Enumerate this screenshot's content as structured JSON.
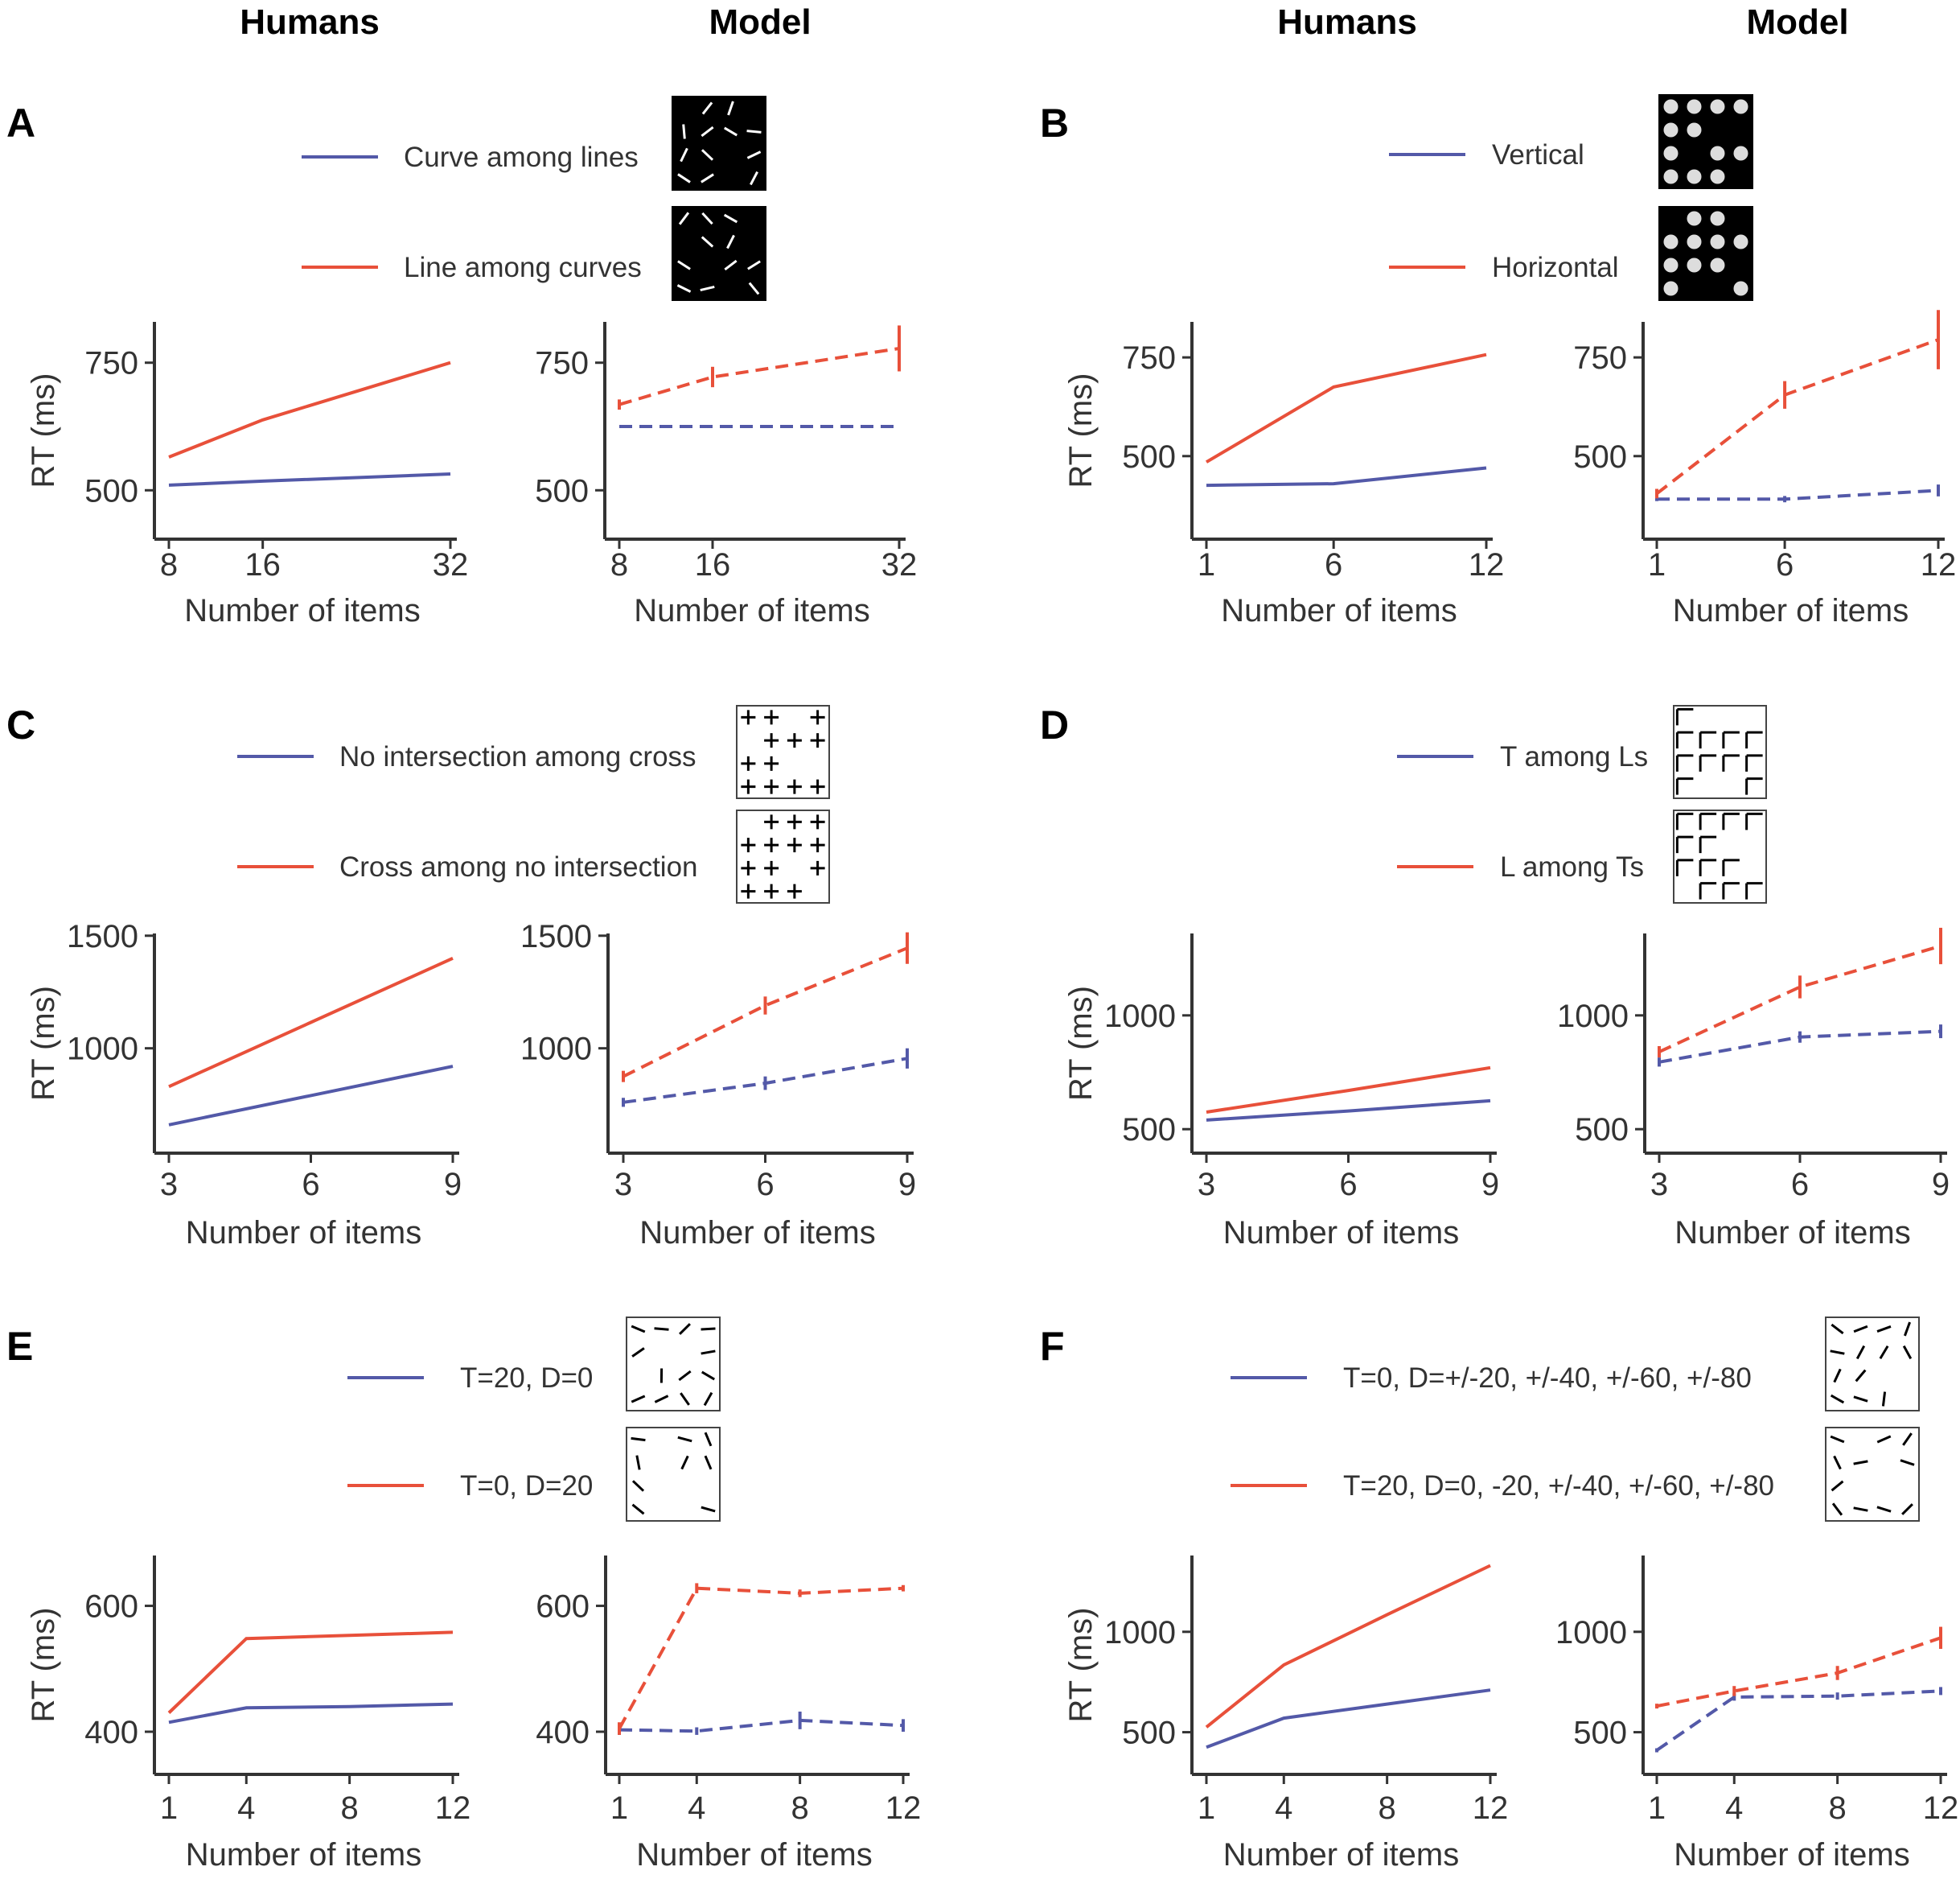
{
  "column_titles": [
    "Humans",
    "Model",
    "Humans",
    "Model"
  ],
  "colors": {
    "blue": "#5359a8",
    "red": "#e8503a",
    "axis": "#333333"
  },
  "panels": [
    {
      "letter": "A",
      "legend": [
        "Curve among lines",
        "Line among curves"
      ],
      "example_style": "dark",
      "example_icons": [
        "curve-among-lines-icon",
        "line-among-curves-icon"
      ]
    },
    {
      "letter": "B",
      "legend": [
        "Vertical",
        "Horizontal"
      ],
      "example_style": "dark",
      "example_icons": [
        "vertical-shading-icon",
        "horizontal-shading-icon"
      ]
    },
    {
      "letter": "C",
      "legend": [
        "No intersection among cross",
        "Cross among no intersection"
      ],
      "example_style": "light",
      "example_icons": [
        "no-intersection-among-cross-icon",
        "cross-among-no-intersection-icon"
      ]
    },
    {
      "letter": "D",
      "legend": [
        "T among Ls",
        "L among Ts"
      ],
      "example_style": "light",
      "example_icons": [
        "t-among-ls-icon",
        "l-among-ts-icon"
      ]
    },
    {
      "letter": "E",
      "legend": [
        "T=20, D=0",
        "T=0, D=20"
      ],
      "example_style": "light",
      "example_icons": [
        "oriented-lines-icon",
        "oriented-lines-icon"
      ]
    },
    {
      "letter": "F",
      "legend": [
        "T=0, D=+/-20, +/-40, +/-60, +/-80",
        "T=20, D=0, -20, +/-40, +/-60, +/-80"
      ],
      "example_style": "light",
      "example_icons": [
        "oriented-lines-icon",
        "oriented-lines-icon"
      ]
    }
  ],
  "chart_data": [
    {
      "panel": "A",
      "subject": "Humans",
      "type": "line",
      "style": "solid",
      "xlabel": "Number of items",
      "ylabel": "RT (ms)",
      "x": [
        8,
        16,
        32
      ],
      "xticks": [
        8,
        16,
        32
      ],
      "yticks": [
        500,
        750
      ],
      "ylim": [
        420,
        830
      ],
      "series": [
        {
          "name": "Curve among lines",
          "color": "blue",
          "values": [
            510,
            518,
            532
          ]
        },
        {
          "name": "Line among curves",
          "color": "red",
          "values": [
            565,
            638,
            750
          ]
        }
      ]
    },
    {
      "panel": "A",
      "subject": "Model",
      "type": "line",
      "style": "dashed",
      "xlabel": "Number of items",
      "ylabel": "",
      "x": [
        8,
        16,
        32
      ],
      "xticks": [
        8,
        16,
        32
      ],
      "yticks": [
        500,
        750
      ],
      "ylim": [
        420,
        830
      ],
      "series": [
        {
          "name": "Curve among lines",
          "color": "blue",
          "values": [
            625,
            625,
            625
          ],
          "err": [
            0,
            0,
            0
          ]
        },
        {
          "name": "Line among curves",
          "color": "red",
          "values": [
            668,
            722,
            778
          ],
          "err": [
            10,
            20,
            45
          ]
        }
      ]
    },
    {
      "panel": "B",
      "subject": "Humans",
      "type": "line",
      "style": "solid",
      "xlabel": "Number of items",
      "ylabel": "RT (ms)",
      "x": [
        1,
        6,
        12
      ],
      "xticks": [
        1,
        6,
        12
      ],
      "yticks": [
        500,
        750
      ],
      "ylim": [
        310,
        840
      ],
      "series": [
        {
          "name": "Vertical",
          "color": "blue",
          "values": [
            426,
            430,
            470
          ]
        },
        {
          "name": "Horizontal",
          "color": "red",
          "values": [
            485,
            675,
            757
          ]
        }
      ]
    },
    {
      "panel": "B",
      "subject": "Model",
      "type": "line",
      "style": "dashed",
      "xlabel": "Number of items",
      "ylabel": "",
      "x": [
        1,
        6,
        12
      ],
      "xticks": [
        1,
        6,
        12
      ],
      "yticks": [
        500,
        750
      ],
      "ylim": [
        310,
        840
      ],
      "series": [
        {
          "name": "Vertical",
          "color": "blue",
          "values": [
            391,
            391,
            413
          ],
          "err": [
            5,
            8,
            15
          ]
        },
        {
          "name": "Horizontal",
          "color": "red",
          "values": [
            405,
            655,
            795
          ],
          "err": [
            12,
            35,
            75
          ]
        }
      ]
    },
    {
      "panel": "C",
      "subject": "Humans",
      "type": "line",
      "style": "solid",
      "xlabel": "Number of items",
      "ylabel": "RT (ms)",
      "x": [
        3,
        6,
        9
      ],
      "xticks": [
        3,
        6,
        9
      ],
      "yticks": [
        1000,
        1500
      ],
      "ylim": [
        570,
        1510
      ],
      "series": [
        {
          "name": "No intersection among cross",
          "color": "blue",
          "values": [
            660,
            790,
            920
          ]
        },
        {
          "name": "Cross among no intersection",
          "color": "red",
          "values": [
            830,
            1115,
            1400
          ]
        }
      ]
    },
    {
      "panel": "C",
      "subject": "Model",
      "type": "line",
      "style": "dashed",
      "xlabel": "Number of items",
      "ylabel": "",
      "x": [
        3,
        6,
        9
      ],
      "xticks": [
        3,
        6,
        9
      ],
      "yticks": [
        1000,
        1500
      ],
      "ylim": [
        570,
        1510
      ],
      "series": [
        {
          "name": "No intersection among cross",
          "color": "blue",
          "values": [
            760,
            845,
            955
          ],
          "err": [
            20,
            30,
            45
          ]
        },
        {
          "name": "Cross among no intersection",
          "color": "red",
          "values": [
            875,
            1190,
            1445
          ],
          "err": [
            25,
            40,
            70
          ]
        }
      ]
    },
    {
      "panel": "D",
      "subject": "Humans",
      "type": "line",
      "style": "solid",
      "xlabel": "Number of items",
      "ylabel": "RT (ms)",
      "x": [
        3,
        6,
        9
      ],
      "xticks": [
        3,
        6,
        9
      ],
      "yticks": [
        500,
        1000
      ],
      "ylim": [
        430,
        1360
      ],
      "series": [
        {
          "name": "T among Ls",
          "color": "blue",
          "values": [
            540,
            580,
            625
          ]
        },
        {
          "name": "L among Ts",
          "color": "red",
          "values": [
            575,
            670,
            770
          ]
        }
      ]
    },
    {
      "panel": "D",
      "subject": "Model",
      "type": "line",
      "style": "dashed",
      "xlabel": "Number of items",
      "ylabel": "",
      "x": [
        3,
        6,
        9
      ],
      "xticks": [
        3,
        6,
        9
      ],
      "yticks": [
        500,
        1000
      ],
      "ylim": [
        430,
        1360
      ],
      "series": [
        {
          "name": "T among Ls",
          "color": "blue",
          "values": [
            795,
            905,
            930
          ],
          "err": [
            20,
            25,
            30
          ]
        },
        {
          "name": "L among Ts",
          "color": "red",
          "values": [
            840,
            1125,
            1305
          ],
          "err": [
            25,
            50,
            80
          ]
        }
      ]
    },
    {
      "panel": "E",
      "subject": "Humans",
      "type": "line",
      "style": "solid",
      "xlabel": "Number of items",
      "ylabel": "RT (ms)",
      "x": [
        1,
        4,
        8,
        12
      ],
      "xticks": [
        1,
        4,
        8,
        12
      ],
      "yticks": [
        400,
        600
      ],
      "ylim": [
        345,
        680
      ],
      "series": [
        {
          "name": "T=20, D=0",
          "color": "blue",
          "values": [
            415,
            438,
            440,
            444
          ]
        },
        {
          "name": "T=0, D=20",
          "color": "red",
          "values": [
            430,
            548,
            553,
            558
          ]
        }
      ]
    },
    {
      "panel": "E",
      "subject": "Model",
      "type": "line",
      "style": "dashed",
      "xlabel": "Number of items",
      "ylabel": "",
      "x": [
        1,
        4,
        8,
        12
      ],
      "xticks": [
        1,
        4,
        8,
        12
      ],
      "yticks": [
        400,
        600
      ],
      "ylim": [
        345,
        680
      ],
      "series": [
        {
          "name": "T=20, D=0",
          "color": "blue",
          "values": [
            403,
            401,
            418,
            410
          ],
          "err": [
            8,
            6,
            14,
            10
          ]
        },
        {
          "name": "T=0, D=20",
          "color": "red",
          "values": [
            405,
            628,
            620,
            628
          ],
          "err": [
            10,
            8,
            6,
            5
          ]
        }
      ]
    },
    {
      "panel": "F",
      "subject": "Humans",
      "type": "line",
      "style": "solid",
      "xlabel": "Number of items",
      "ylabel": "RT (ms)",
      "x": [
        1,
        4,
        8,
        12
      ],
      "xticks": [
        1,
        4,
        8,
        12
      ],
      "yticks": [
        500,
        1000
      ],
      "ylim": [
        330,
        1380
      ],
      "series": [
        {
          "name": "T=0, D=+/-20, +/-40, +/-60, +/-80",
          "color": "blue",
          "values": [
            425,
            570,
            640,
            710
          ]
        },
        {
          "name": "T=20, D=0, -20, +/-40, +/-60, +/-80",
          "color": "red",
          "values": [
            525,
            835,
            1085,
            1330
          ]
        }
      ]
    },
    {
      "panel": "F",
      "subject": "Model",
      "type": "line",
      "style": "dashed",
      "xlabel": "Number of items",
      "ylabel": "",
      "x": [
        1,
        4,
        8,
        12
      ],
      "xticks": [
        1,
        4,
        8,
        12
      ],
      "yticks": [
        500,
        1000
      ],
      "ylim": [
        330,
        1380
      ],
      "series": [
        {
          "name": "T=0, D=+/-20, +/-40, +/-60, +/-80",
          "color": "blue",
          "values": [
            410,
            675,
            680,
            705
          ],
          "err": [
            10,
            18,
            18,
            20
          ]
        },
        {
          "name": "T=20, D=0, -20, +/-40, +/-60, +/-80",
          "color": "red",
          "values": [
            630,
            705,
            795,
            970
          ],
          "err": [
            12,
            25,
            35,
            55
          ]
        }
      ]
    }
  ]
}
